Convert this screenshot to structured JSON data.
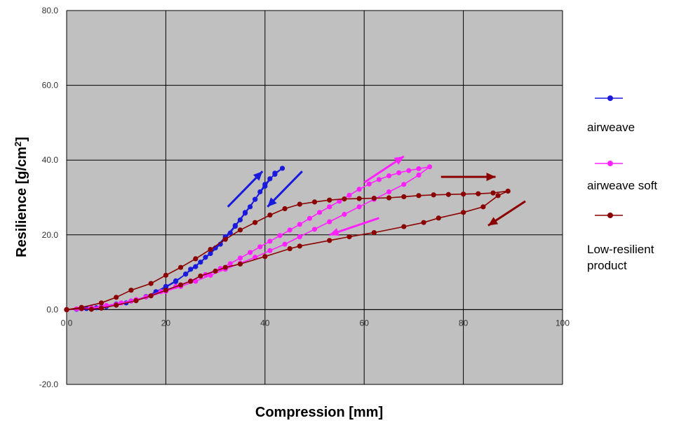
{
  "chart_data": {
    "type": "line",
    "title": "",
    "xlabel": "Compression  [mm]",
    "ylabel_main": "Resilience  [g/cm",
    "ylabel_sup": "2",
    "ylabel_close": "]",
    "xlim": [
      0,
      100
    ],
    "ylim": [
      -20,
      80
    ],
    "x_ticks": [
      0,
      20,
      40,
      60,
      80,
      100
    ],
    "y_ticks": [
      -20,
      0,
      20,
      40,
      60,
      80
    ],
    "x_tick_labels": [
      "0.0",
      "20",
      "40",
      "60",
      "80",
      "100"
    ],
    "y_tick_labels": [
      "-20.0",
      "0.0",
      "20.0",
      "40.0",
      "60.0",
      "80.0"
    ],
    "grid": true,
    "plot_background": "#c0c0c0",
    "legend_position": "right",
    "series": [
      {
        "name": "airweave",
        "color": "#1a1adc",
        "x": [
          0,
          3,
          7,
          10,
          13,
          16,
          18,
          20,
          22,
          24,
          25,
          27,
          29,
          31,
          32,
          33,
          34,
          35,
          36,
          37,
          38,
          39,
          40,
          41,
          42,
          43.5,
          42,
          40,
          38,
          36,
          34,
          32,
          30,
          28,
          26,
          24,
          22,
          20,
          18,
          16,
          14,
          12,
          10,
          8,
          6,
          4,
          2,
          0
        ],
        "y": [
          0,
          0.3,
          0.8,
          1.5,
          2.3,
          3.4,
          4.8,
          6.2,
          7.7,
          9.5,
          10.8,
          12.7,
          15,
          17.5,
          19,
          20.5,
          22.3,
          24,
          25.8,
          27.5,
          29.5,
          31.5,
          33.5,
          35,
          36.2,
          37.8,
          36.5,
          33,
          29.5,
          26,
          22.5,
          19.5,
          16.5,
          14,
          11.5,
          9.5,
          7.5,
          6,
          4.6,
          3.5,
          2.6,
          1.8,
          1.2,
          0.8,
          0.5,
          0.3,
          0.1,
          0
        ]
      },
      {
        "name": "airweave soft",
        "color": "#ff22ff",
        "x": [
          0,
          3,
          7,
          10,
          13,
          16,
          19,
          22,
          25,
          28,
          31,
          33,
          35,
          37,
          39,
          41,
          43,
          45,
          47,
          49,
          51,
          53,
          55,
          57,
          59,
          61,
          63,
          65,
          67,
          69,
          71,
          73.2,
          71,
          68,
          65,
          62,
          59,
          56,
          53,
          50,
          47,
          44,
          41,
          38,
          35,
          32,
          29,
          26,
          23,
          20,
          17,
          14,
          11,
          8,
          5,
          2,
          0
        ],
        "y": [
          0,
          0.2,
          0.7,
          1.4,
          2.3,
          3.4,
          4.8,
          6.2,
          7.7,
          9.4,
          11,
          12.3,
          13.8,
          15.3,
          16.8,
          18.3,
          19.8,
          21.3,
          22.8,
          24.4,
          26,
          27.5,
          29,
          30.6,
          32.2,
          33.6,
          34.8,
          35.8,
          36.6,
          37.2,
          37.7,
          38.2,
          36,
          33.5,
          31.5,
          29.5,
          27.5,
          25.5,
          23.5,
          21.5,
          19.5,
          17.5,
          15.8,
          14,
          12.4,
          10.8,
          9.2,
          7.6,
          6.2,
          4.9,
          3.7,
          2.7,
          1.8,
          1.1,
          0.5,
          0.2,
          0
        ]
      },
      {
        "name": "Low-resilient product",
        "color": "#8b0000",
        "x": [
          0,
          3,
          7,
          10,
          13,
          17,
          20,
          23,
          26,
          29,
          32,
          35,
          38,
          41,
          44,
          47,
          50,
          53,
          56,
          59,
          62,
          65,
          68,
          71,
          74,
          77,
          80,
          83,
          86,
          89,
          87,
          84,
          80,
          75,
          72,
          68,
          62,
          57,
          53,
          47,
          45,
          40,
          35,
          32,
          30,
          27,
          25,
          23,
          20,
          17,
          14,
          10,
          7,
          5,
          3,
          0
        ],
        "y": [
          0,
          0.6,
          1.8,
          3.3,
          5.2,
          7,
          9.2,
          11.3,
          13.6,
          16.1,
          18.8,
          21.3,
          23.3,
          25.3,
          27,
          28.2,
          28.8,
          29.3,
          29.6,
          29.7,
          29.8,
          29.9,
          30.2,
          30.5,
          30.7,
          30.8,
          30.9,
          31,
          31.2,
          31.7,
          30.5,
          27.5,
          26,
          24.5,
          23.3,
          22.2,
          20.6,
          19.5,
          18.5,
          17,
          16.3,
          14.2,
          12.2,
          11.3,
          10.3,
          9,
          7.6,
          6.6,
          5.2,
          3.7,
          2.4,
          1.2,
          0.4,
          0.1,
          0.3,
          0
        ]
      }
    ],
    "direction_arrows": [
      {
        "name": "airweave-loading-arrow",
        "series": 0,
        "from": [
          32.5,
          27.5
        ],
        "to": [
          39.5,
          37
        ]
      },
      {
        "name": "airweave-unloading-arrow",
        "series": 0,
        "from": [
          47.5,
          37
        ],
        "to": [
          40.5,
          27.5
        ]
      },
      {
        "name": "airweave-soft-loading-arrow",
        "series": 1,
        "from": [
          60,
          34
        ],
        "to": [
          68,
          41
        ]
      },
      {
        "name": "airweave-soft-unloading-arrow",
        "series": 1,
        "from": [
          63,
          24.5
        ],
        "to": [
          53,
          20
        ]
      },
      {
        "name": "low-resilient-loading-arrow",
        "series": 2,
        "from": [
          75.5,
          35.5
        ],
        "to": [
          86.5,
          35.5
        ]
      },
      {
        "name": "low-resilient-unloading-arrow",
        "series": 2,
        "from": [
          92.5,
          29
        ],
        "to": [
          85,
          22.5
        ]
      }
    ]
  },
  "legend": {
    "items": [
      {
        "label": "airweave",
        "color": "#1a1adc"
      },
      {
        "label": "airweave soft",
        "color": "#ff22ff"
      },
      {
        "label_line1": "Low-resilient",
        "label_line2": "product",
        "color": "#8b0000"
      }
    ]
  }
}
